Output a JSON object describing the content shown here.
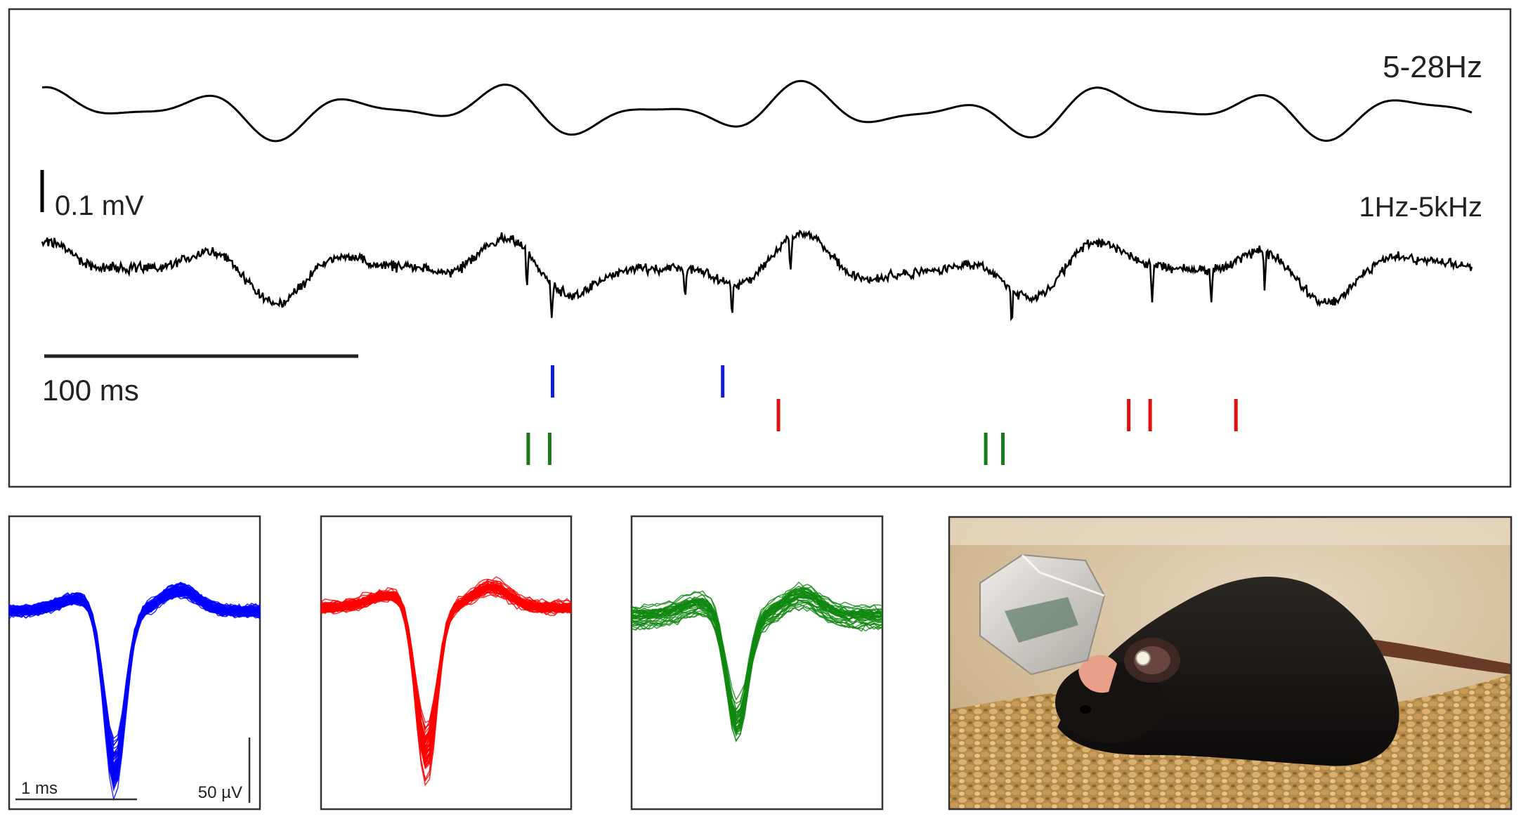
{
  "top_panel": {
    "trace_labels": {
      "filtered": "5-28Hz",
      "broadband": "1Hz-5kHz"
    },
    "scale_bars": {
      "voltage": "0.1 mV",
      "time": "100 ms"
    },
    "spike_raster": [
      {
        "unit": "blue",
        "color": "#1020d8",
        "row": 1,
        "times": [
          0.357,
          0.476
        ]
      },
      {
        "unit": "red",
        "color": "#e01010",
        "row": 2,
        "times": [
          0.515,
          0.76,
          0.775,
          0.835
        ]
      },
      {
        "unit": "green",
        "color": "#1a7a1a",
        "row": 3,
        "times": [
          0.34,
          0.355,
          0.66,
          0.672
        ]
      }
    ]
  },
  "waveform_panels": [
    {
      "unit": "blue",
      "color": "#0000ff",
      "scale_time": "1 ms",
      "scale_voltage": "50 µV"
    },
    {
      "unit": "red",
      "color": "#ff0000"
    },
    {
      "unit": "green",
      "color": "#118811"
    }
  ],
  "photo": {
    "subject": "mouse with head-mounted recording device on food pellets"
  }
}
